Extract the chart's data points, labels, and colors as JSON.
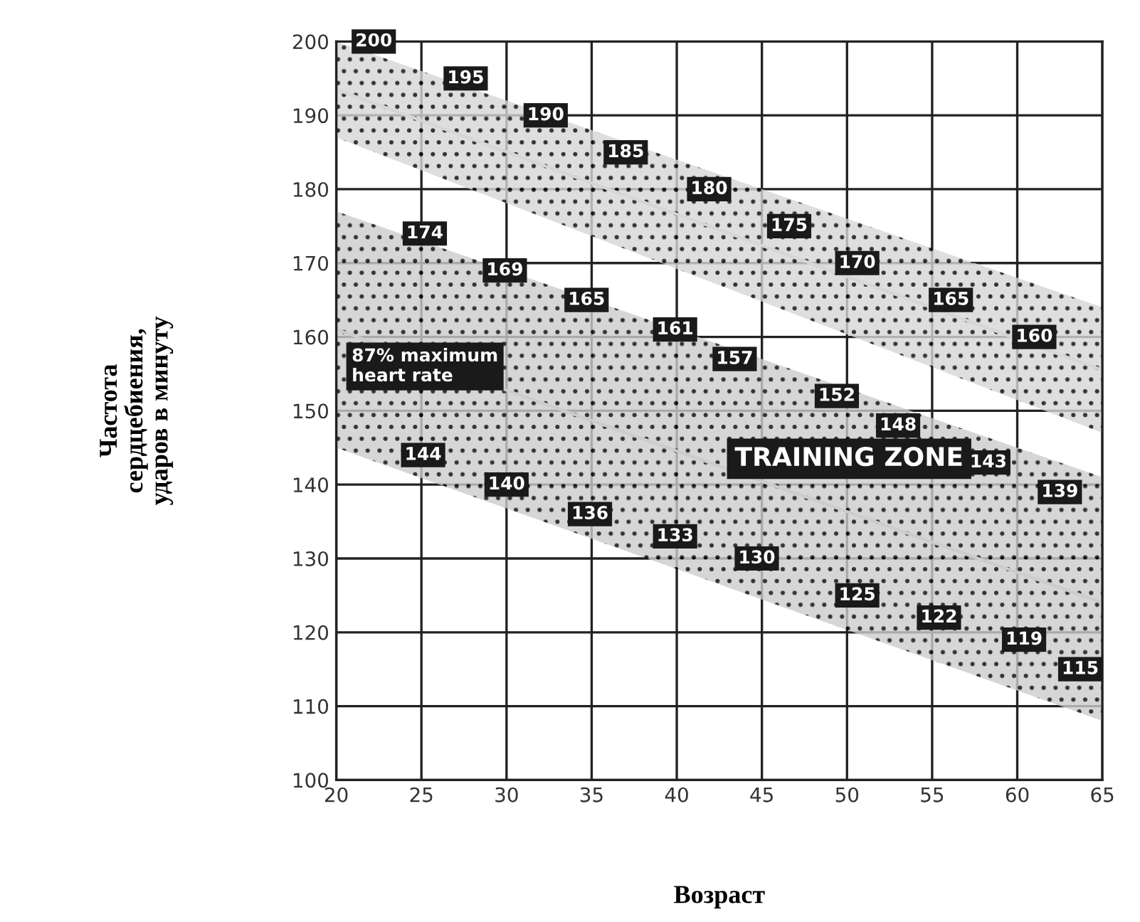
{
  "chart_data": {
    "type": "scatter",
    "xlabel": "Возраст",
    "ylabel": "Частота\nсердцебиения,\nударов в минуту",
    "xlim": [
      20,
      65
    ],
    "ylim": [
      100,
      200
    ],
    "xticks": [
      20,
      25,
      30,
      35,
      40,
      45,
      50,
      55,
      60,
      65
    ],
    "yticks": [
      100,
      110,
      120,
      130,
      140,
      150,
      160,
      170,
      180,
      190,
      200
    ],
    "grid": true,
    "data_labels": true,
    "series": [
      {
        "type": "line",
        "marker": "none",
        "value_labels": [
          null,
          null
        ],
        "color": "#d6d6d6",
        "x": [
          20,
          65
        ],
        "values": [
          193.5,
          155.5
        ],
        "lower": [
          187,
          147
        ],
        "upper": [
          200,
          164
        ]
      },
      {
        "type": "line",
        "marker": "none",
        "value_labels": [
          null,
          null
        ],
        "color": "#cccccc",
        "x": [
          20,
          65
        ],
        "values": [
          161,
          124
        ],
        "lower": [
          145,
          108
        ],
        "upper": [
          177,
          141
        ]
      },
      {
        "color": "#1a1a1a",
        "x": [
          22.2,
          27.6,
          32.3,
          37.0,
          41.9,
          46.6,
          50.6,
          56.1,
          61.0
        ],
        "values": [
          200,
          195,
          190,
          185,
          180,
          175,
          170,
          165,
          160
        ]
      },
      {
        "color": "#1a1a1a",
        "x": [
          25.2,
          29.9,
          34.7,
          39.9,
          43.4,
          49.4,
          53.0,
          58.3,
          62.5
        ],
        "values": [
          174,
          169,
          165,
          161,
          157,
          152,
          148,
          143,
          139
        ]
      },
      {
        "color": "#1a1a1a",
        "x": [
          25.1,
          30.0,
          34.9,
          39.9,
          44.7,
          50.6,
          55.4,
          60.4,
          63.7
        ],
        "values": [
          144,
          140,
          136,
          133,
          130,
          125,
          122,
          119,
          115
        ]
      }
    ],
    "annotations": [
      "87% maximum\nheart rate",
      "TRAINING ZONE"
    ]
  }
}
